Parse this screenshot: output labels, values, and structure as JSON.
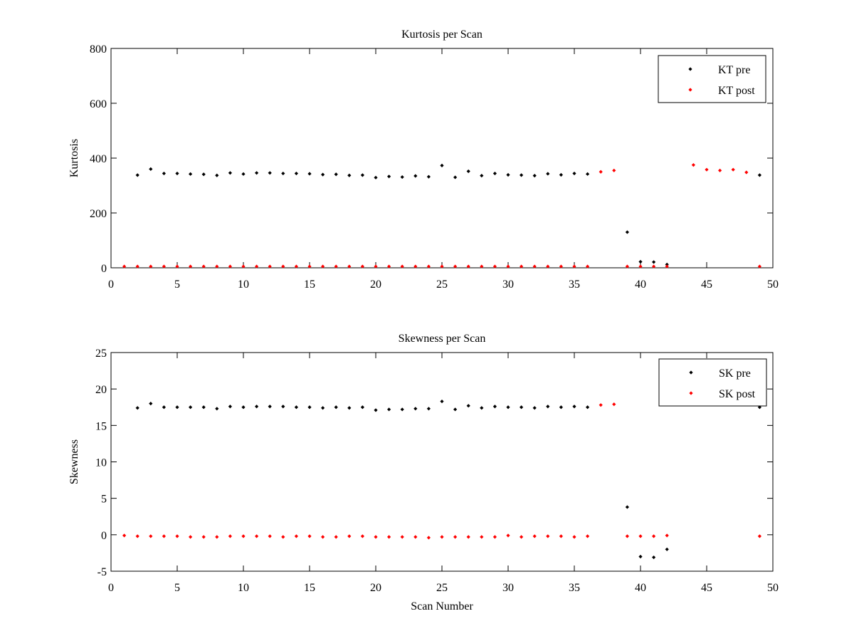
{
  "chart_data": [
    {
      "type": "scatter",
      "title": "Kurtosis per Scan",
      "xlabel": "",
      "ylabel": "Kurtosis",
      "xlim": [
        0,
        50
      ],
      "ylim": [
        0,
        800
      ],
      "xticks": [
        0,
        5,
        10,
        15,
        20,
        25,
        30,
        35,
        40,
        45,
        50
      ],
      "yticks": [
        0,
        200,
        400,
        600,
        800
      ],
      "grid": false,
      "legend_position": "top-right",
      "series": [
        {
          "name": "KT pre",
          "color": "#000000",
          "x": [
            2,
            3,
            4,
            5,
            6,
            7,
            8,
            9,
            10,
            11,
            12,
            13,
            14,
            15,
            16,
            17,
            18,
            19,
            20,
            21,
            22,
            23,
            24,
            25,
            26,
            27,
            28,
            29,
            30,
            31,
            32,
            33,
            34,
            35,
            36,
            39,
            40,
            41,
            42,
            49
          ],
          "y": [
            338,
            360,
            344,
            344,
            342,
            341,
            337,
            346,
            342,
            346,
            346,
            344,
            344,
            343,
            340,
            341,
            337,
            338,
            329,
            333,
            331,
            335,
            332,
            373,
            330,
            352,
            336,
            344,
            339,
            338,
            336,
            343,
            339,
            344,
            342,
            130,
            22,
            21,
            12,
            338
          ]
        },
        {
          "name": "KT post",
          "color": "#ff0000",
          "x": [
            1,
            2,
            3,
            4,
            5,
            6,
            7,
            8,
            9,
            10,
            11,
            12,
            13,
            14,
            15,
            16,
            17,
            18,
            19,
            20,
            21,
            22,
            23,
            24,
            25,
            26,
            27,
            28,
            29,
            30,
            31,
            32,
            33,
            34,
            35,
            36,
            37,
            38,
            39,
            40,
            41,
            42,
            44,
            45,
            46,
            47,
            48,
            49
          ],
          "y": [
            5,
            5,
            5,
            5,
            5,
            5,
            5,
            5,
            5,
            5,
            5,
            5,
            5,
            5,
            5,
            5,
            5,
            5,
            5,
            5,
            5,
            5,
            5,
            5,
            5,
            5,
            5,
            5,
            5,
            5,
            5,
            5,
            5,
            5,
            5,
            5,
            350,
            355,
            5,
            5,
            5,
            5,
            375,
            358,
            355,
            358,
            348,
            5
          ]
        }
      ]
    },
    {
      "type": "scatter",
      "title": "Skewness per Scan",
      "xlabel": "Scan Number",
      "ylabel": "Skewness",
      "xlim": [
        0,
        50
      ],
      "ylim": [
        -5,
        25
      ],
      "xticks": [
        0,
        5,
        10,
        15,
        20,
        25,
        30,
        35,
        40,
        45,
        50
      ],
      "yticks": [
        -5,
        0,
        5,
        10,
        15,
        20,
        25
      ],
      "grid": false,
      "legend_position": "top-right",
      "series": [
        {
          "name": "SK pre",
          "color": "#000000",
          "x": [
            2,
            3,
            4,
            5,
            6,
            7,
            8,
            9,
            10,
            11,
            12,
            13,
            14,
            15,
            16,
            17,
            18,
            19,
            20,
            21,
            22,
            23,
            24,
            25,
            26,
            27,
            28,
            29,
            30,
            31,
            32,
            33,
            34,
            35,
            36,
            39,
            40,
            41,
            42,
            49
          ],
          "y": [
            17.4,
            18.0,
            17.5,
            17.5,
            17.5,
            17.5,
            17.3,
            17.6,
            17.5,
            17.6,
            17.6,
            17.6,
            17.5,
            17.5,
            17.4,
            17.5,
            17.4,
            17.5,
            17.1,
            17.2,
            17.2,
            17.3,
            17.3,
            18.3,
            17.2,
            17.7,
            17.4,
            17.6,
            17.5,
            17.5,
            17.4,
            17.6,
            17.5,
            17.6,
            17.5,
            3.8,
            -3.0,
            -3.1,
            -2.0,
            17.5
          ]
        },
        {
          "name": "SK post",
          "color": "#ff0000",
          "x": [
            1,
            2,
            3,
            4,
            5,
            6,
            7,
            8,
            9,
            10,
            11,
            12,
            13,
            14,
            15,
            16,
            17,
            18,
            19,
            20,
            21,
            22,
            23,
            24,
            25,
            26,
            27,
            28,
            29,
            30,
            31,
            32,
            33,
            34,
            35,
            36,
            37,
            38,
            39,
            40,
            41,
            42,
            49
          ],
          "y": [
            -0.1,
            -0.2,
            -0.2,
            -0.2,
            -0.2,
            -0.3,
            -0.3,
            -0.3,
            -0.2,
            -0.2,
            -0.2,
            -0.2,
            -0.3,
            -0.2,
            -0.2,
            -0.3,
            -0.3,
            -0.2,
            -0.2,
            -0.3,
            -0.3,
            -0.3,
            -0.3,
            -0.4,
            -0.3,
            -0.3,
            -0.3,
            -0.3,
            -0.3,
            -0.1,
            -0.3,
            -0.2,
            -0.2,
            -0.2,
            -0.3,
            -0.2,
            17.8,
            17.9,
            -0.2,
            -0.2,
            -0.2,
            -0.1,
            -0.2
          ]
        }
      ]
    }
  ]
}
